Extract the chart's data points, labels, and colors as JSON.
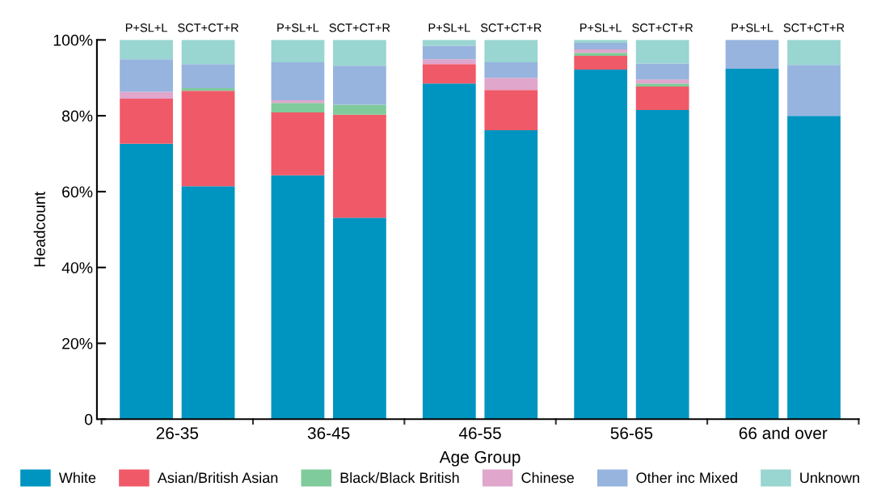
{
  "chart_data": {
    "type": "bar",
    "stacked": true,
    "xlabel": "Age Group",
    "ylabel": "Headcount",
    "categories": [
      "P+SL+L",
      "SCT+CT+R",
      "P+SL+L",
      "SCT+CT+R",
      "P+SL+L",
      "SCT+CT+R",
      "P+SL+L",
      "SCT+CT+R",
      "P+SL+L",
      "SCT+CT+R"
    ],
    "annotations": [
      "26-35",
      "36-45",
      "46-55",
      "56-65",
      "66 and over"
    ],
    "series": [
      {
        "name": "White",
        "color": "#0095c0",
        "values": [
          72.6,
          61.4,
          64.3,
          53.1,
          88.5,
          76.2,
          92.2,
          81.5,
          92.4,
          80.0
        ]
      },
      {
        "name": "Asian/British Asian",
        "color": "#f05a68",
        "values": [
          11.9,
          25.2,
          16.6,
          27.2,
          5.1,
          10.6,
          3.6,
          6.2,
          0,
          0
        ]
      },
      {
        "name": "Black/Black British",
        "color": "#80cb9b",
        "values": [
          0,
          0.7,
          2.5,
          2.6,
          0,
          0,
          0.8,
          0.8,
          0,
          0
        ]
      },
      {
        "name": "Chinese",
        "color": "#e0a6cc",
        "values": [
          1.8,
          0,
          0.7,
          0,
          1.3,
          3.2,
          0.9,
          1.1,
          0,
          0
        ]
      },
      {
        "name": "Other inc Mixed",
        "color": "#96b4de",
        "values": [
          8.6,
          6.3,
          10.0,
          10.3,
          3.6,
          4.1,
          1.7,
          4.2,
          7.6,
          13.4
        ]
      },
      {
        "name": "Unknown",
        "color": "#99d5d1",
        "values": [
          5.1,
          6.4,
          5.9,
          6.8,
          1.5,
          5.9,
          0.8,
          6.2,
          0,
          6.6
        ]
      }
    ],
    "ylim": [
      0,
      100
    ],
    "yticks": [
      0,
      {
        "value": 20,
        "label": "20%"
      },
      {
        "value": 40,
        "label": "40%"
      },
      {
        "value": 60,
        "label": "60%"
      },
      {
        "value": 80,
        "label": "80%"
      },
      {
        "value": 100,
        "label": "100%"
      }
    ],
    "grid": false,
    "legend": "bottom"
  }
}
